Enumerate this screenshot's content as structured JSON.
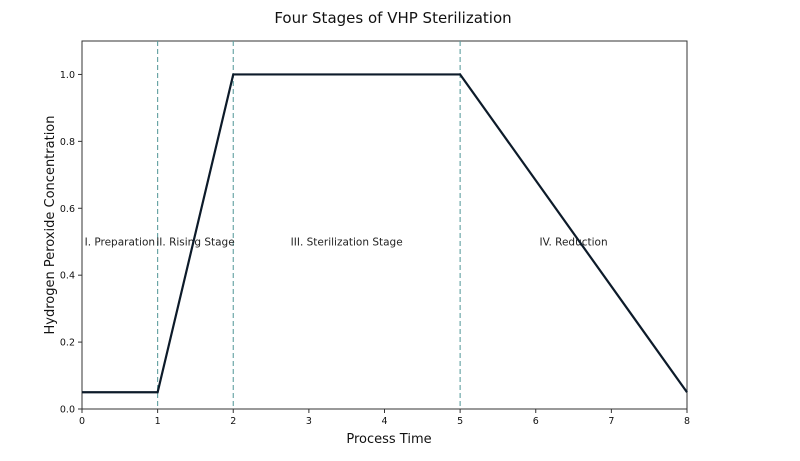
{
  "chart_data": {
    "type": "line",
    "title": "Four Stages of VHP Sterilization",
    "xlabel": "Process Time",
    "ylabel": "Hydrogen Peroxide Concentration",
    "xlim": [
      0,
      8
    ],
    "ylim": [
      0,
      1.1
    ],
    "x_ticks": [
      0,
      1,
      2,
      3,
      4,
      5,
      6,
      7,
      8
    ],
    "y_ticks": [
      0.0,
      0.2,
      0.4,
      0.6,
      0.8,
      1.0
    ],
    "x_tick_labels": [
      "0",
      "1",
      "2",
      "3",
      "4",
      "5",
      "6",
      "7",
      "8"
    ],
    "y_tick_labels": [
      "0.0",
      "0.2",
      "0.4",
      "0.6",
      "0.8",
      "1.0"
    ],
    "grid": false,
    "series": [
      {
        "x": [
          0,
          1,
          2,
          5,
          8
        ],
        "y": [
          0.05,
          0.05,
          1.0,
          1.0,
          0.05
        ],
        "color": "#0d1b2a"
      }
    ],
    "stage_boundaries": [
      1,
      2,
      5
    ],
    "boundary_color": "#5f9ea0",
    "stages": [
      {
        "label": "I. Preparation",
        "x": 0.5,
        "y": 0.5
      },
      {
        "label": "II. Rising Stage",
        "x": 1.5,
        "y": 0.5
      },
      {
        "label": "III. Sterilization Stage",
        "x": 3.5,
        "y": 0.5
      },
      {
        "label": "IV. Reduction",
        "x": 6.5,
        "y": 0.5
      }
    ]
  }
}
